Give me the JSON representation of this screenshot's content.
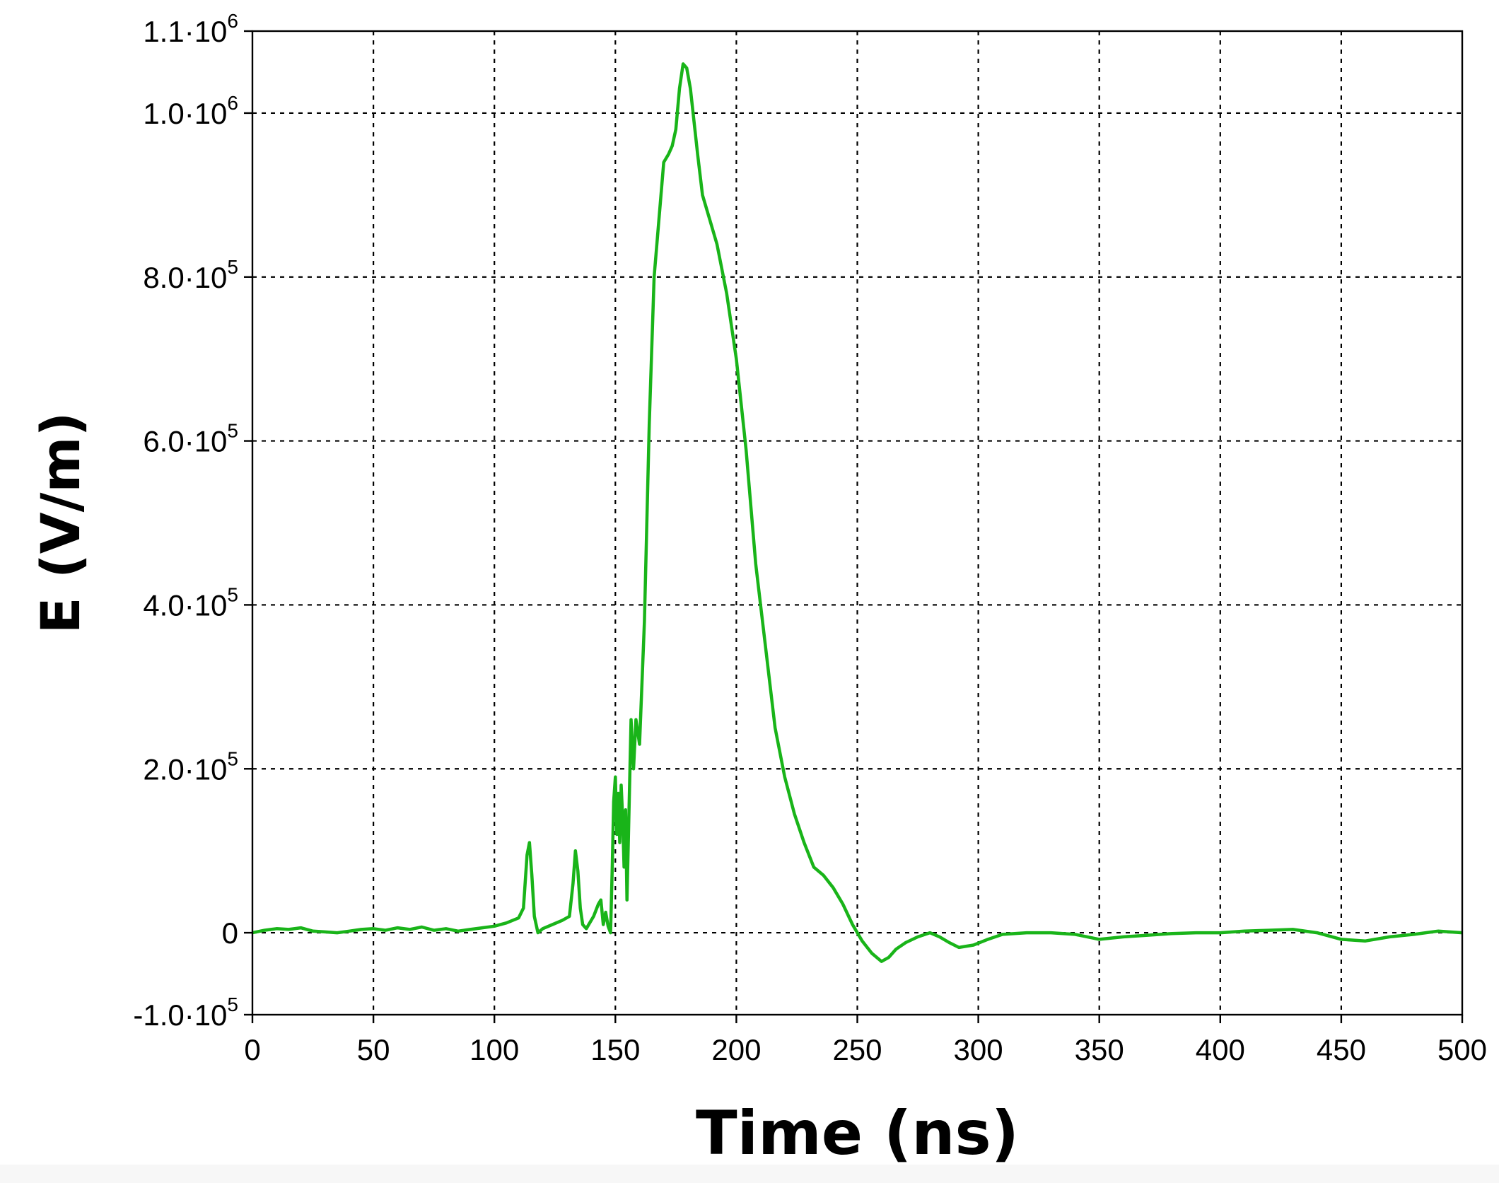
{
  "chart_data": {
    "type": "line",
    "title": "",
    "xlabel": "Time (ns)",
    "ylabel": "E (V/m)",
    "xlim": [
      0,
      500
    ],
    "ylim": [
      -100000,
      1100000
    ],
    "grid": true,
    "x_ticks": [
      {
        "value": 0,
        "label": "0"
      },
      {
        "value": 50,
        "label": "50"
      },
      {
        "value": 100,
        "label": "100"
      },
      {
        "value": 150,
        "label": "150"
      },
      {
        "value": 200,
        "label": "200"
      },
      {
        "value": 250,
        "label": "250"
      },
      {
        "value": 300,
        "label": "300"
      },
      {
        "value": 350,
        "label": "350"
      },
      {
        "value": 400,
        "label": "400"
      },
      {
        "value": 450,
        "label": "450"
      },
      {
        "value": 500,
        "label": "500"
      }
    ],
    "y_ticks": [
      {
        "value": -100000,
        "mantissa": "-1.0·10",
        "exp": "5"
      },
      {
        "value": 0,
        "mantissa": "0",
        "exp": ""
      },
      {
        "value": 200000,
        "mantissa": "2.0·10",
        "exp": "5"
      },
      {
        "value": 400000,
        "mantissa": "4.0·10",
        "exp": "5"
      },
      {
        "value": 600000,
        "mantissa": "6.0·10",
        "exp": "5"
      },
      {
        "value": 800000,
        "mantissa": "8.0·10",
        "exp": "5"
      },
      {
        "value": 1000000,
        "mantissa": "1.0·10",
        "exp": "6"
      },
      {
        "value": 1100000,
        "mantissa": "1.1·10",
        "exp": "6"
      }
    ],
    "series": [
      {
        "color": "#19b419",
        "x": [
          0,
          5,
          10,
          15,
          20,
          25,
          30,
          35,
          40,
          45,
          50,
          55,
          60,
          65,
          70,
          75,
          80,
          85,
          90,
          95,
          100,
          105,
          110,
          112,
          113.5,
          114.5,
          115.5,
          116.5,
          118,
          120,
          124,
          128,
          131,
          132.5,
          133.5,
          134.5,
          135.5,
          136.5,
          138,
          141,
          143,
          144,
          145,
          146,
          147,
          148,
          148.7,
          149.3,
          150,
          150.6,
          151.2,
          151.8,
          152.4,
          153,
          153.6,
          154.2,
          154.8,
          155.5,
          156.5,
          157.5,
          158.5,
          160,
          162,
          164,
          166,
          168,
          170,
          172,
          173.5,
          175,
          176.5,
          178,
          179.5,
          181,
          182.5,
          184,
          186,
          189,
          192,
          196,
          200,
          204,
          208,
          212,
          216,
          220,
          224,
          228,
          232,
          236,
          240,
          244,
          248,
          252,
          256,
          260,
          263,
          266,
          270,
          275,
          280,
          284,
          288,
          292,
          298,
          304,
          310,
          320,
          330,
          340,
          350,
          360,
          370,
          380,
          390,
          400,
          410,
          420,
          430,
          440,
          450,
          460,
          470,
          480,
          490,
          500
        ],
        "y": [
          0,
          3000,
          5000,
          4000,
          6000,
          2000,
          1000,
          0,
          2000,
          4000,
          5000,
          3000,
          6000,
          4000,
          7000,
          3000,
          5000,
          2000,
          4000,
          6000,
          8000,
          12000,
          18000,
          30000,
          95000,
          110000,
          70000,
          20000,
          0,
          5000,
          10000,
          15000,
          20000,
          60000,
          100000,
          75000,
          30000,
          10000,
          5000,
          20000,
          35000,
          40000,
          10000,
          25000,
          8000,
          0,
          80000,
          160000,
          190000,
          120000,
          170000,
          110000,
          180000,
          140000,
          80000,
          150000,
          40000,
          130000,
          260000,
          200000,
          260000,
          230000,
          380000,
          620000,
          800000,
          870000,
          940000,
          950000,
          960000,
          980000,
          1030000,
          1060000,
          1055000,
          1030000,
          990000,
          950000,
          900000,
          870000,
          840000,
          780000,
          700000,
          590000,
          450000,
          350000,
          250000,
          190000,
          145000,
          110000,
          80000,
          70000,
          55000,
          35000,
          10000,
          -10000,
          -25000,
          -35000,
          -30000,
          -20000,
          -12000,
          -5000,
          0,
          -5000,
          -12000,
          -18000,
          -15000,
          -8000,
          -2000,
          0,
          0,
          -2000,
          -8000,
          -5000,
          -3000,
          -1000,
          0,
          0,
          2000,
          3000,
          4000,
          0,
          -8000,
          -10000,
          -5000,
          -2000,
          2000,
          0
        ]
      }
    ]
  }
}
